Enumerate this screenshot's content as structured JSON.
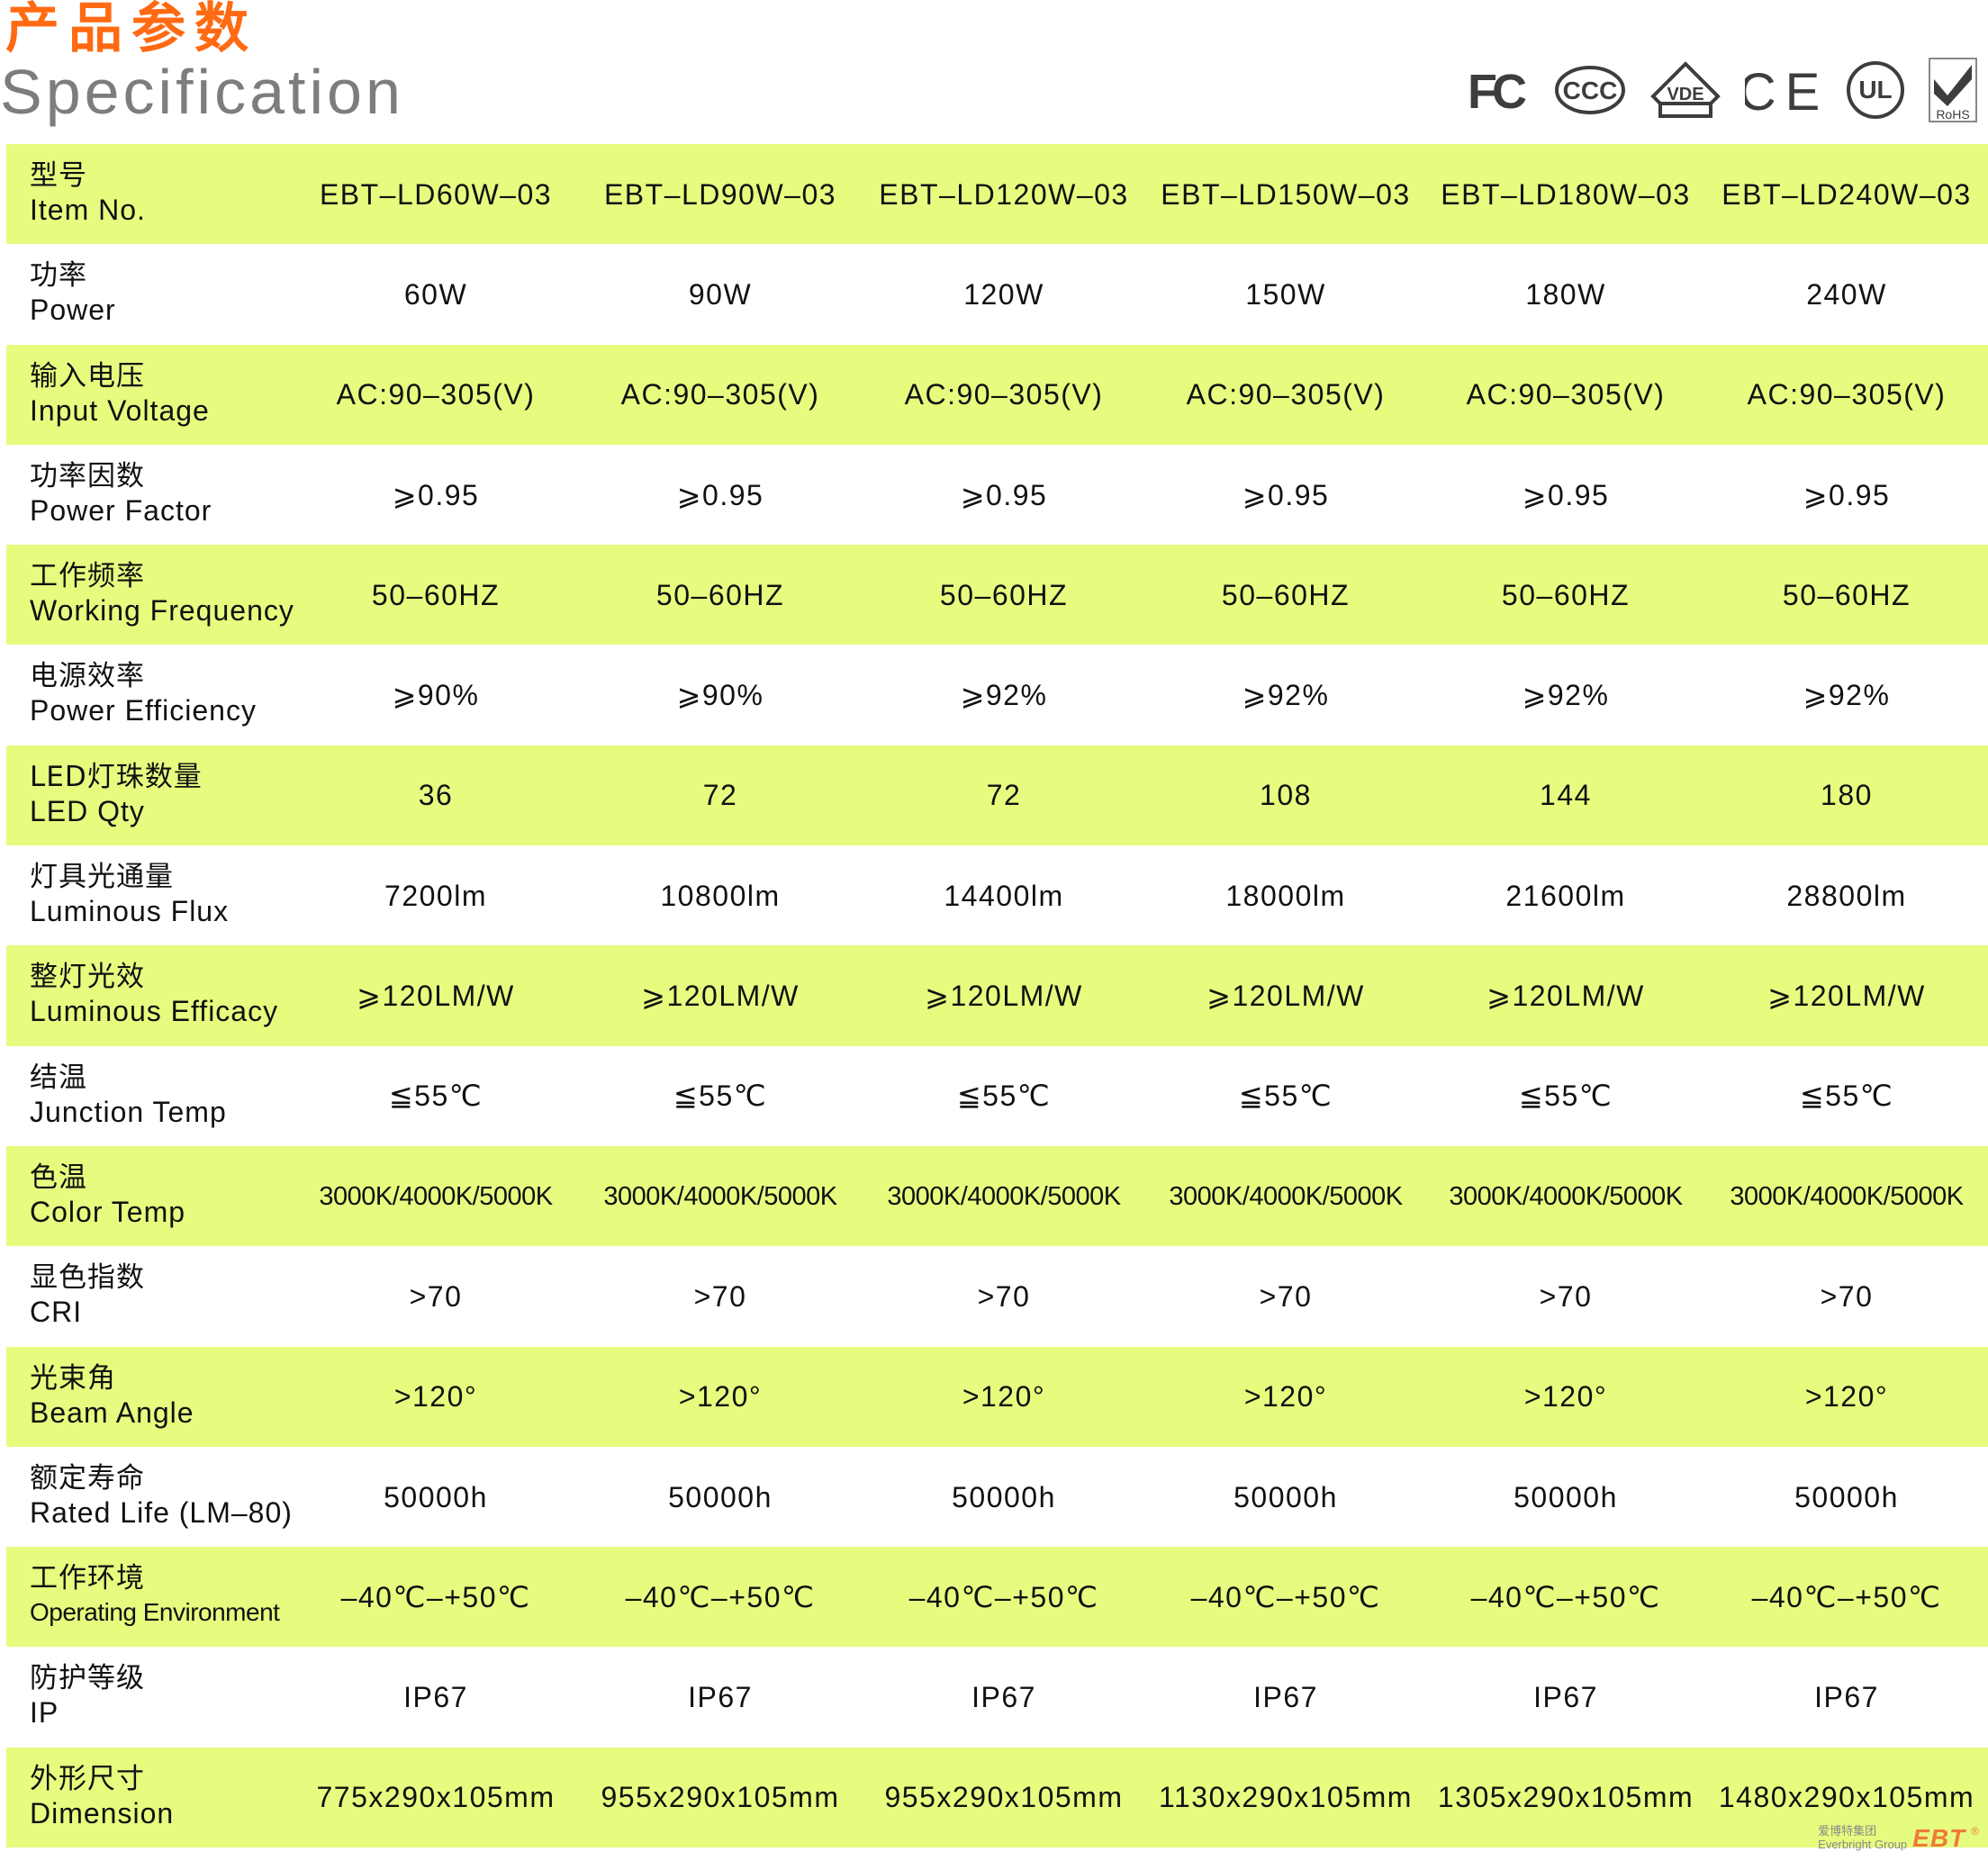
{
  "header": {
    "title_cn": "产品参数",
    "title_en": "Specification",
    "certifications": [
      "FC",
      "CCC",
      "VDE",
      "CE",
      "UL",
      "RoHS"
    ]
  },
  "colors": {
    "title": "#ff6a12",
    "subtitle": "#7d7d7d",
    "row_highlight": "#e6fc7f",
    "logo": "#f07a3a"
  },
  "table": {
    "columns": [
      "EBT-LD60W-03",
      "EBT-LD90W-03",
      "EBT-LD120W-03",
      "EBT-LD150W-03",
      "EBT-LD180W-03",
      "EBT-LD240W-03"
    ],
    "rows": [
      {
        "cn": "型号",
        "en": "Item No.",
        "values": [
          "EBT–LD60W–03",
          "EBT–LD90W–03",
          "EBT–LD120W–03",
          "EBT–LD150W–03",
          "EBT–LD180W–03",
          "EBT–LD240W–03"
        ]
      },
      {
        "cn": "功率",
        "en": "Power",
        "values": [
          "60W",
          "90W",
          "120W",
          "150W",
          "180W",
          "240W"
        ]
      },
      {
        "cn": "输入电压",
        "en": "Input Voltage",
        "values": [
          "AC:90–305(V)",
          "AC:90–305(V)",
          "AC:90–305(V)",
          "AC:90–305(V)",
          "AC:90–305(V)",
          "AC:90–305(V)"
        ]
      },
      {
        "cn": "功率因数",
        "en": "Power Factor",
        "values": [
          "⩾0.95",
          "⩾0.95",
          "⩾0.95",
          "⩾0.95",
          "⩾0.95",
          "⩾0.95"
        ]
      },
      {
        "cn": "工作频率",
        "en": "Working Frequency",
        "values": [
          "50–60HZ",
          "50–60HZ",
          "50–60HZ",
          "50–60HZ",
          "50–60HZ",
          "50–60HZ"
        ]
      },
      {
        "cn": "电源效率",
        "en": "Power Efficiency",
        "values": [
          "⩾90%",
          "⩾90%",
          "⩾92%",
          "⩾92%",
          "⩾92%",
          "⩾92%"
        ]
      },
      {
        "cn": "LED灯珠数量",
        "en": "LED Qty",
        "values": [
          "36",
          "72",
          "72",
          "108",
          "144",
          "180"
        ]
      },
      {
        "cn": "灯具光通量",
        "en": "Luminous Flux",
        "values": [
          "7200lm",
          "10800lm",
          "14400lm",
          "18000lm",
          "21600lm",
          "28800lm"
        ]
      },
      {
        "cn": "整灯光效",
        "en": "Luminous Efficacy",
        "values": [
          "⩾120LM/W",
          "⩾120LM/W",
          "⩾120LM/W",
          "⩾120LM/W",
          "⩾120LM/W",
          "⩾120LM/W"
        ]
      },
      {
        "cn": "结温",
        "en": "Junction Temp",
        "values": [
          "≦55℃",
          "≦55℃",
          "≦55℃",
          "≦55℃",
          "≦55℃",
          "≦55℃"
        ]
      },
      {
        "cn": "色温",
        "en": "Color Temp",
        "values": [
          "3000K/4000K/5000K",
          "3000K/4000K/5000K",
          "3000K/4000K/5000K",
          "3000K/4000K/5000K",
          "3000K/4000K/5000K",
          "3000K/4000K/5000K"
        ]
      },
      {
        "cn": "显色指数",
        "en": "CRI",
        "values": [
          ">70",
          ">70",
          ">70",
          ">70",
          ">70",
          ">70"
        ]
      },
      {
        "cn": "光束角",
        "en": "Beam Angle",
        "values": [
          ">120°",
          ">120°",
          ">120°",
          ">120°",
          ">120°",
          ">120°"
        ]
      },
      {
        "cn": "额定寿命",
        "en": "Rated Life (LM–80)",
        "values": [
          "50000h",
          "50000h",
          "50000h",
          "50000h",
          "50000h",
          "50000h"
        ]
      },
      {
        "cn": "工作环境",
        "en": "Operating Environment",
        "values": [
          "–40℃–+50℃",
          "–40℃–+50℃",
          "–40℃–+50℃",
          "–40℃–+50℃",
          "–40℃–+50℃",
          "–40℃–+50℃"
        ]
      },
      {
        "cn": "防护等级",
        "en": "IP",
        "values": [
          "IP67",
          "IP67",
          "IP67",
          "IP67",
          "IP67",
          "IP67"
        ]
      },
      {
        "cn": "外形尺寸",
        "en": "Dimension",
        "values": [
          "775x290x105mm",
          "955x290x105mm",
          "955x290x105mm",
          "1130x290x105mm",
          "1305x290x105mm",
          "1480x290x105mm"
        ]
      }
    ]
  },
  "footer": {
    "group_cn": "爱博特集团",
    "group_en": "Everbright Group",
    "brand": "EBT",
    "registered": "®"
  }
}
